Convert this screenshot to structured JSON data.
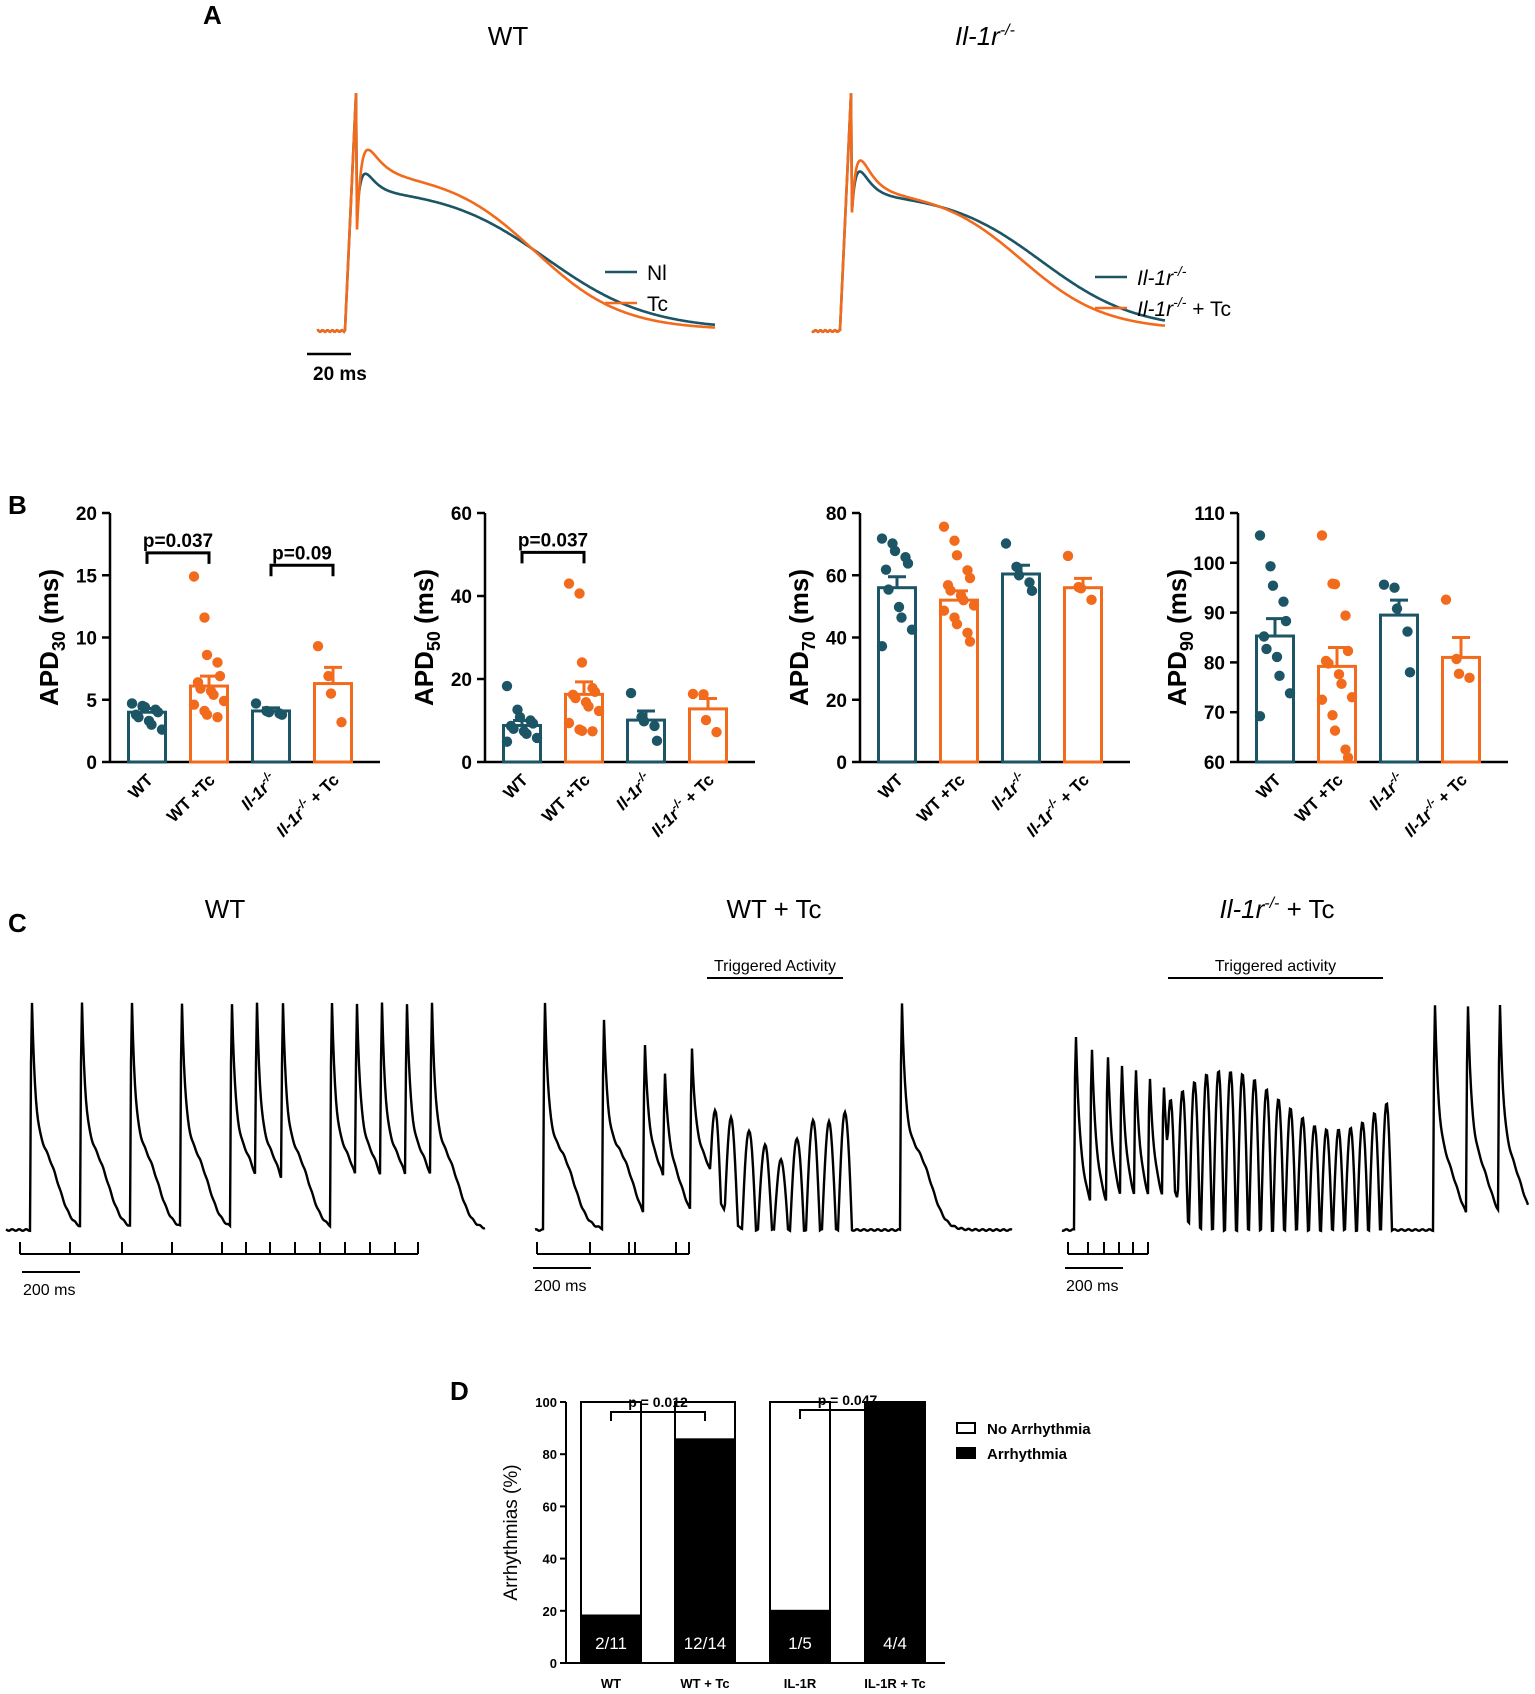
{
  "colors": {
    "teal": "#1b5566",
    "orange": "#f26b1d",
    "black": "#000000"
  },
  "panels": {
    "a": "A",
    "b": "B",
    "c": "C",
    "d": "D"
  },
  "panel_a": {
    "plots": [
      {
        "title_main": "WT",
        "title_sup": "",
        "title_italic": false,
        "legend": [
          {
            "main": "Nl",
            "sup": "",
            "suffix": "",
            "italic": false,
            "color": "#1b5566"
          },
          {
            "main": "Tc",
            "sup": "",
            "suffix": "",
            "italic": false,
            "color": "#f26b1d"
          }
        ]
      },
      {
        "title_main": "Il-1r",
        "title_sup": "-/-",
        "title_italic": true,
        "legend": [
          {
            "main": "Il-1r",
            "sup": "-/-",
            "suffix": "",
            "italic": true,
            "color": "#1b5566"
          },
          {
            "main": "Il-1r",
            "sup": "-/-",
            "suffix": " + Tc",
            "italic": true,
            "color": "#f26b1d"
          }
        ]
      }
    ],
    "scale_bar": "20 ms"
  },
  "chart_data": [
    {
      "type": "bar",
      "panel": "B",
      "ylabel_main": "APD",
      "ylabel_sub": "30",
      "ylabel_unit": " (ms)",
      "ylim": [
        0,
        20
      ],
      "yticks": [
        0,
        5,
        10,
        15,
        20
      ],
      "categories": [
        {
          "label": "WT",
          "sup": "",
          "suffix": "",
          "italic": false
        },
        {
          "label": "WT +Tc",
          "sup": "",
          "suffix": "",
          "italic": false
        },
        {
          "label": "Il-1r",
          "sup": "-/-",
          "suffix": "",
          "italic": true
        },
        {
          "label": "Il-1r",
          "sup": "-/-",
          "suffix": " + Tc",
          "italic": true
        }
      ],
      "bar_colors": [
        "#1b5566",
        "#f26b1d",
        "#1b5566",
        "#f26b1d"
      ],
      "values": [
        4.0,
        6.1,
        4.1,
        6.3
      ],
      "sem": [
        0.3,
        0.8,
        0.25,
        1.3
      ],
      "points": [
        [
          4.7,
          4.5,
          4.4,
          4.2,
          4.0,
          3.8,
          3.6,
          3.3,
          3.0,
          2.6
        ],
        [
          14.9,
          11.6,
          8.6,
          8.0,
          6.9,
          6.4,
          5.9,
          5.7,
          5.4,
          4.9,
          4.6,
          4.1,
          3.8,
          3.6
        ],
        [
          4.7,
          4.1,
          4.0,
          3.9,
          3.8
        ],
        [
          9.3,
          6.9,
          5.5,
          3.2
        ]
      ],
      "comparisons": [
        {
          "from": 0,
          "to": 1,
          "label": "p=0.037",
          "y": 16.8
        },
        {
          "from": 2,
          "to": 3,
          "label": "p=0.09",
          "y": 15.8
        }
      ]
    },
    {
      "type": "bar",
      "panel": "B",
      "ylabel_main": "APD",
      "ylabel_sub": "50",
      "ylabel_unit": " (ms)",
      "ylim": [
        0,
        60
      ],
      "yticks": [
        0,
        20,
        40,
        60
      ],
      "categories": [
        {
          "label": "WT",
          "sup": "",
          "suffix": "",
          "italic": false
        },
        {
          "label": "WT +Tc",
          "sup": "",
          "suffix": "",
          "italic": false
        },
        {
          "label": "Il-1r",
          "sup": "-/-",
          "suffix": "",
          "italic": true
        },
        {
          "label": "Il-1r",
          "sup": "-/-",
          "suffix": " + Tc",
          "italic": true
        }
      ],
      "bar_colors": [
        "#1b5566",
        "#f26b1d",
        "#1b5566",
        "#f26b1d"
      ],
      "values": [
        8.8,
        16.3,
        10.1,
        12.8
      ],
      "sem": [
        1.2,
        3.0,
        2.2,
        2.5
      ],
      "points": [
        [
          18.3,
          12.6,
          10.8,
          10.0,
          9.3,
          8.7,
          8.0,
          7.4,
          6.8,
          5.8,
          4.9
        ],
        [
          43.0,
          40.6,
          24.0,
          17.8,
          16.9,
          16.2,
          15.4,
          14.4,
          13.4,
          12.3,
          9.4,
          7.8,
          7.5,
          7.4
        ],
        [
          16.6,
          10.8,
          9.8,
          8.7,
          5.1
        ],
        [
          16.4,
          16.3,
          10.1,
          7.2
        ]
      ],
      "comparisons": [
        {
          "from": 0,
          "to": 1,
          "label": "p=0.037",
          "y": 50.5
        }
      ]
    },
    {
      "type": "bar",
      "panel": "B",
      "ylabel_main": "APD",
      "ylabel_sub": "70",
      "ylabel_unit": " (ms)",
      "ylim": [
        0,
        80
      ],
      "yticks": [
        0,
        20,
        40,
        60,
        80
      ],
      "categories": [
        {
          "label": "WT",
          "sup": "",
          "suffix": "",
          "italic": false
        },
        {
          "label": "WT +Tc",
          "sup": "",
          "suffix": "",
          "italic": false
        },
        {
          "label": "Il-1r",
          "sup": "-/-",
          "suffix": "",
          "italic": true
        },
        {
          "label": "Il-1r",
          "sup": "-/-",
          "suffix": " + Tc",
          "italic": true
        }
      ],
      "bar_colors": [
        "#1b5566",
        "#f26b1d",
        "#1b5566",
        "#f26b1d"
      ],
      "values": [
        56.0,
        52.0,
        60.4,
        56.0
      ],
      "sem": [
        3.5,
        3.0,
        2.8,
        3.0
      ],
      "points": [
        [
          71.8,
          70.2,
          67.8,
          65.8,
          63.8,
          61.8,
          55.4,
          49.8,
          46.4,
          42.5,
          37.2
        ],
        [
          75.6,
          71.1,
          66.4,
          61.6,
          59.1,
          56.8,
          55.1,
          53.5,
          52.0,
          50.3,
          48.6,
          46.4,
          44.3,
          41.5,
          38.7
        ],
        [
          70.2,
          62.7,
          60.0,
          57.7,
          55.0
        ],
        [
          66.2,
          56.2,
          55.8,
          52.1
        ]
      ],
      "comparisons": []
    },
    {
      "type": "bar",
      "panel": "B",
      "ylabel_main": "APD",
      "ylabel_sub": "90",
      "ylabel_unit": " (ms)",
      "ylim": [
        60,
        110
      ],
      "yticks": [
        60,
        70,
        80,
        90,
        100,
        110
      ],
      "categories": [
        {
          "label": "WT",
          "sup": "",
          "suffix": "",
          "italic": false
        },
        {
          "label": "WT +Tc",
          "sup": "",
          "suffix": "",
          "italic": false
        },
        {
          "label": "Il-1r",
          "sup": "-/-",
          "suffix": "",
          "italic": true
        },
        {
          "label": "Il-1r",
          "sup": "-/-",
          "suffix": " + Tc",
          "italic": true
        }
      ],
      "bar_colors": [
        "#1b5566",
        "#f26b1d",
        "#1b5566",
        "#f26b1d"
      ],
      "values": [
        85.3,
        79.2,
        89.5,
        81.0
      ],
      "sem": [
        3.5,
        3.8,
        3.0,
        4.0
      ],
      "points": [
        [
          105.5,
          99.3,
          95.4,
          92.2,
          88.3,
          85.2,
          82.7,
          81.1,
          77.3,
          73.8,
          69.2
        ],
        [
          105.5,
          95.8,
          95.7,
          89.4,
          82.3,
          80.3,
          79.8,
          77.6,
          75.7,
          73.0,
          72.5,
          69.4,
          66.3,
          62.5,
          60.9
        ],
        [
          95.6,
          95.0,
          90.8,
          86.2,
          78.0
        ],
        [
          92.6,
          80.7,
          77.7,
          76.9
        ]
      ],
      "comparisons": []
    },
    {
      "type": "bar",
      "stacked": true,
      "panel": "D",
      "ylabel": "Arrhythmias (%)",
      "ylim": [
        0,
        100
      ],
      "yticks": [
        0,
        20,
        40,
        60,
        80,
        100
      ],
      "categories": [
        "WT",
        "WT + Tc",
        "IL-1R",
        "IL-1R + Tc"
      ],
      "series": [
        {
          "name": "Arrhythmia",
          "values": [
            18.2,
            85.7,
            20.0,
            100.0
          ],
          "color": "#000000"
        },
        {
          "name": "No Arrhythmia",
          "values": [
            81.8,
            14.3,
            80.0,
            0.0
          ],
          "color": "#ffffff"
        }
      ],
      "bar_labels": [
        "2/11",
        "12/14",
        "1/5",
        "4/4"
      ],
      "comparisons": [
        {
          "from": 0,
          "to": 1,
          "label": "p = 0.012"
        },
        {
          "from": 2,
          "to": 3,
          "label": "p = 0.047"
        }
      ],
      "legend_position": "right"
    }
  ],
  "panel_c": {
    "traces": [
      {
        "title_main": "WT",
        "title_sup": "",
        "title_suffix": "",
        "italic": false,
        "annotation": "",
        "scale_bar": "200 ms"
      },
      {
        "title_main": "WT + Tc",
        "title_sup": "",
        "title_suffix": "",
        "italic": false,
        "annotation": "Triggered Activity",
        "scale_bar": "200 ms"
      },
      {
        "title_main": "Il-1r",
        "title_sup": "-/-",
        "title_suffix": " + Tc",
        "italic": true,
        "annotation": "Triggered activity",
        "scale_bar": "200 ms"
      }
    ]
  }
}
